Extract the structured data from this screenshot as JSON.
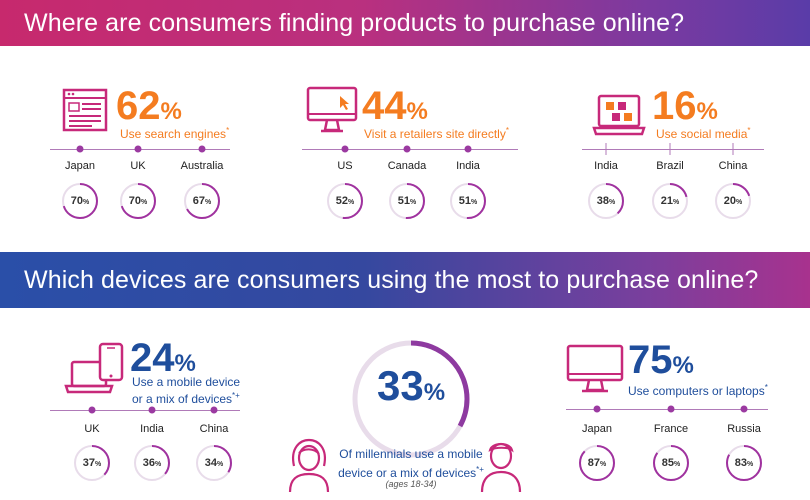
{
  "section1": {
    "title": "Where are consumers finding products to purchase online?",
    "items": [
      {
        "value": "62",
        "unit": "%",
        "label": "Use search engines",
        "mark": "*",
        "icon": "search-page-icon",
        "countries": [
          {
            "name": "Japan",
            "value": "70",
            "unit": "%",
            "fraction": 0.7
          },
          {
            "name": "UK",
            "value": "70",
            "unit": "%",
            "fraction": 0.7
          },
          {
            "name": "Australia",
            "value": "67",
            "unit": "%",
            "fraction": 0.67
          }
        ]
      },
      {
        "value": "44",
        "unit": "%",
        "label": "Visit a retailers site directly",
        "mark": "*",
        "icon": "monitor-cursor-icon",
        "countries": [
          {
            "name": "US",
            "value": "52",
            "unit": "%",
            "fraction": 0.52
          },
          {
            "name": "Canada",
            "value": "51",
            "unit": "%",
            "fraction": 0.51
          },
          {
            "name": "India",
            "value": "51",
            "unit": "%",
            "fraction": 0.51
          }
        ]
      },
      {
        "value": "16",
        "unit": "%",
        "label": "Use social media",
        "mark": "*",
        "icon": "laptop-social-icon",
        "countries": [
          {
            "name": "India",
            "value": "38",
            "unit": "%",
            "fraction": 0.38
          },
          {
            "name": "Brazil",
            "value": "21",
            "unit": "%",
            "fraction": 0.21
          },
          {
            "name": "China",
            "value": "20",
            "unit": "%",
            "fraction": 0.2
          }
        ]
      }
    ]
  },
  "section2": {
    "title": "Which devices are consumers using the most to purchase online?",
    "mobile": {
      "value": "24",
      "unit": "%",
      "label_line1": "Use a mobile device",
      "label_line2": "or a mix of devices",
      "mark": "*+",
      "icon": "laptop-phone-icon",
      "countries": [
        {
          "name": "UK",
          "value": "37",
          "unit": "%",
          "fraction": 0.37
        },
        {
          "name": "India",
          "value": "36",
          "unit": "%",
          "fraction": 0.36
        },
        {
          "name": "China",
          "value": "34",
          "unit": "%",
          "fraction": 0.34
        }
      ]
    },
    "millennials": {
      "value": "33",
      "unit": "%",
      "fraction": 0.33,
      "label_line1": "Of millennials use a mobile",
      "label_line2": "device or a mix of devices",
      "mark": "*+",
      "ages": "(ages 18-34)"
    },
    "computers": {
      "value": "75",
      "unit": "%",
      "label": "Use computers or laptops",
      "mark": "*",
      "icon": "desktop-monitor-icon",
      "countries": [
        {
          "name": "Japan",
          "value": "87",
          "unit": "%",
          "fraction": 0.87
        },
        {
          "name": "France",
          "value": "85",
          "unit": "%",
          "fraction": 0.85
        },
        {
          "name": "Russia",
          "value": "83",
          "unit": "%",
          "fraction": 0.83
        }
      ]
    }
  },
  "colors": {
    "orange": "#f47c20",
    "magenta": "#c7297a",
    "blue": "#1f4e9c",
    "ring_track": "#e8dcea",
    "ring_fill": "#a0329f"
  }
}
